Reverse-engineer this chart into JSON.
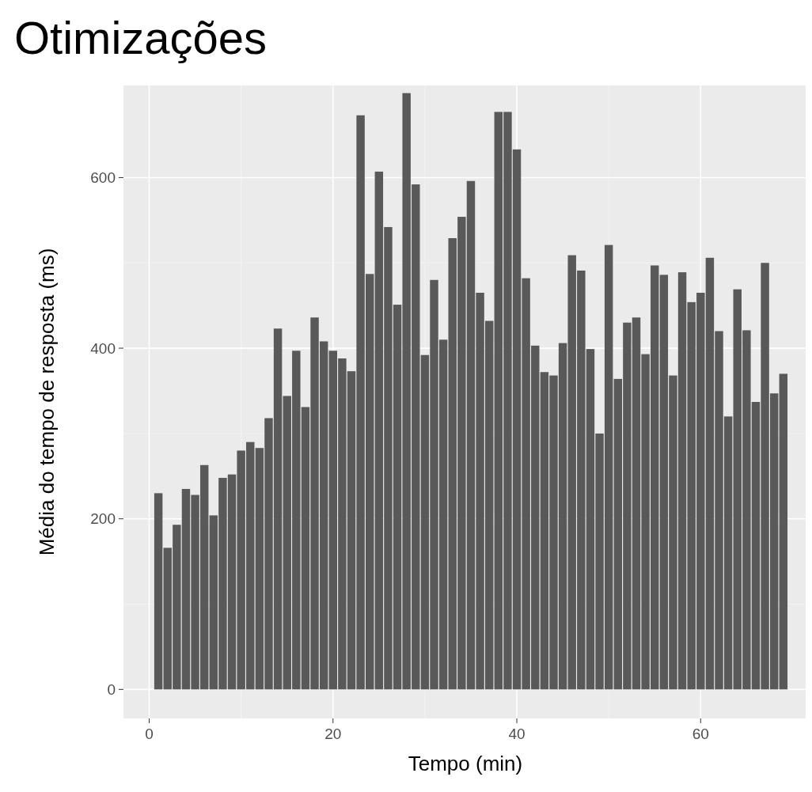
{
  "chart_data": {
    "type": "bar",
    "title": "Otimizações",
    "xlabel": "Tempo (min)",
    "ylabel": "Média do tempo de resposta (ms)",
    "color": "#595959",
    "x": [
      1,
      2,
      3,
      4,
      5,
      6,
      7,
      8,
      9,
      10,
      11,
      12,
      13,
      14,
      15,
      16,
      17,
      18,
      19,
      20,
      21,
      22,
      23,
      24,
      25,
      26,
      27,
      28,
      29,
      30,
      31,
      32,
      33,
      34,
      35,
      36,
      37,
      38,
      39,
      40,
      41,
      42,
      43,
      44,
      45,
      46,
      47,
      48,
      49,
      50,
      51,
      52,
      53,
      54,
      55,
      56,
      57,
      58,
      59,
      60,
      61,
      62,
      63,
      64,
      65,
      66,
      67,
      68,
      69
    ],
    "values": [
      230,
      166,
      193,
      235,
      228,
      263,
      204,
      248,
      252,
      280,
      290,
      283,
      318,
      423,
      344,
      397,
      331,
      436,
      408,
      397,
      388,
      373,
      673,
      487,
      607,
      542,
      451,
      699,
      592,
      392,
      480,
      410,
      529,
      554,
      596,
      465,
      432,
      677,
      677,
      633,
      482,
      403,
      372,
      368,
      406,
      509,
      491,
      399,
      300,
      521,
      364,
      430,
      436,
      393,
      497,
      486,
      368,
      489,
      454,
      465,
      506,
      420,
      320,
      469,
      421,
      337,
      500,
      347,
      370
    ],
    "xlim": [
      -2.8,
      71.6
    ],
    "ylim": [
      -34,
      708
    ],
    "xticks": [
      0,
      20,
      40,
      60
    ],
    "yticks": [
      0,
      200,
      400,
      600
    ],
    "grid": true
  }
}
